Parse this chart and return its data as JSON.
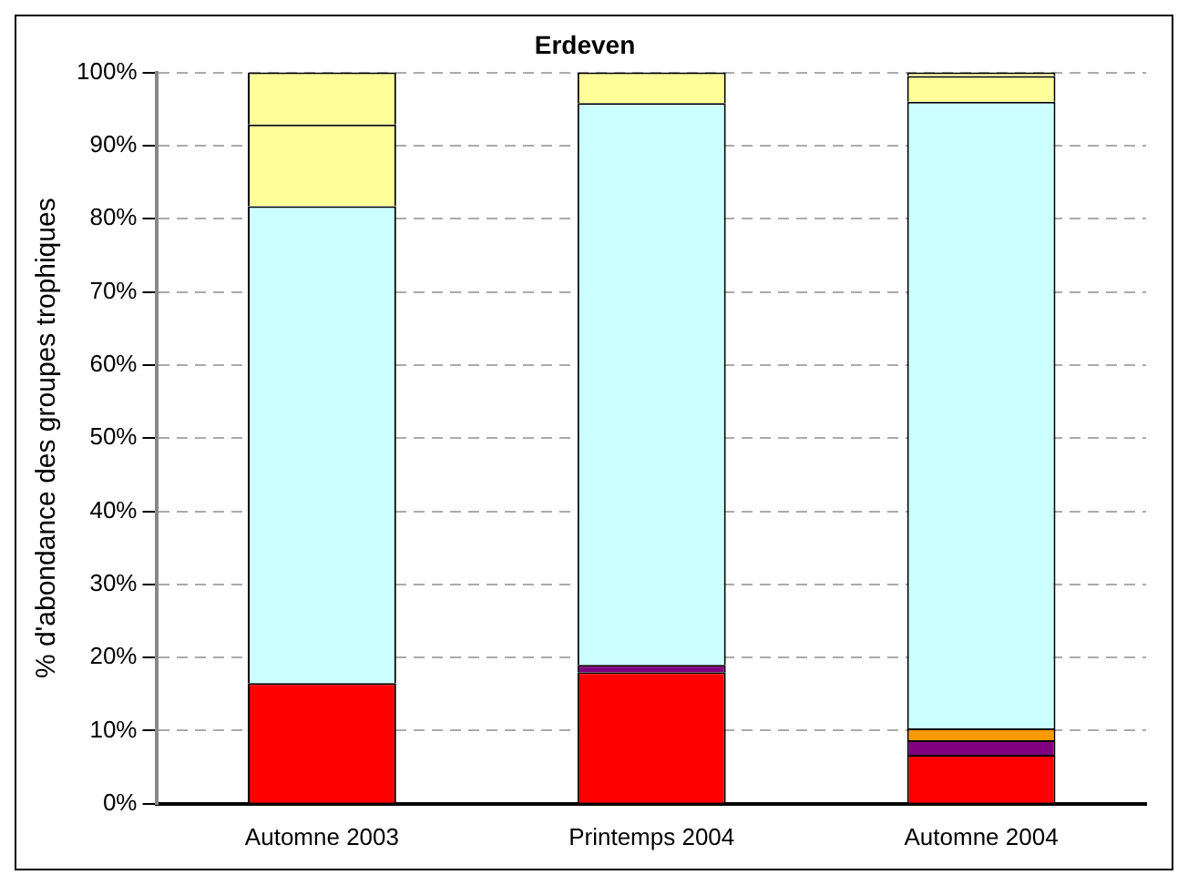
{
  "chart_data": {
    "type": "bar",
    "title": "Erdeven",
    "ylabel": "% d'abondance des groupes trophiques",
    "categories": [
      "Automne 2003",
      "Printemps 2004",
      "Automne 2004"
    ],
    "stacked": true,
    "grid": "y",
    "legend": false,
    "line_style": "dashed",
    "series": [
      {
        "color": "#ff0000",
        "values": [
          16.5,
          18,
          6.7
        ]
      },
      {
        "color": "#800080",
        "values": [
          0,
          1,
          2
        ]
      },
      {
        "color": "#ff9900",
        "values": [
          0,
          0,
          1.6
        ]
      },
      {
        "color": "#ccffff",
        "values": [
          65.2,
          76.8,
          85.7
        ]
      },
      {
        "color": "#ffff99",
        "values": [
          11.2,
          4.2,
          3.5
        ]
      },
      {
        "color": "#ffff99",
        "values": [
          7.1,
          0,
          0.5
        ]
      }
    ],
    "ylim": [
      0,
      100
    ],
    "yticks": [
      {
        "value": 0,
        "label": "0%"
      },
      {
        "value": 10,
        "label": "10%"
      },
      {
        "value": 20,
        "label": "20%"
      },
      {
        "value": 30,
        "label": "30%"
      },
      {
        "value": 40,
        "label": "40%"
      },
      {
        "value": 50,
        "label": "50%"
      },
      {
        "value": 60,
        "label": "60%"
      },
      {
        "value": 70,
        "label": "70%"
      },
      {
        "value": 80,
        "label": "80%"
      },
      {
        "value": 90,
        "label": "90%"
      },
      {
        "value": 100,
        "label": "100%"
      }
    ]
  }
}
